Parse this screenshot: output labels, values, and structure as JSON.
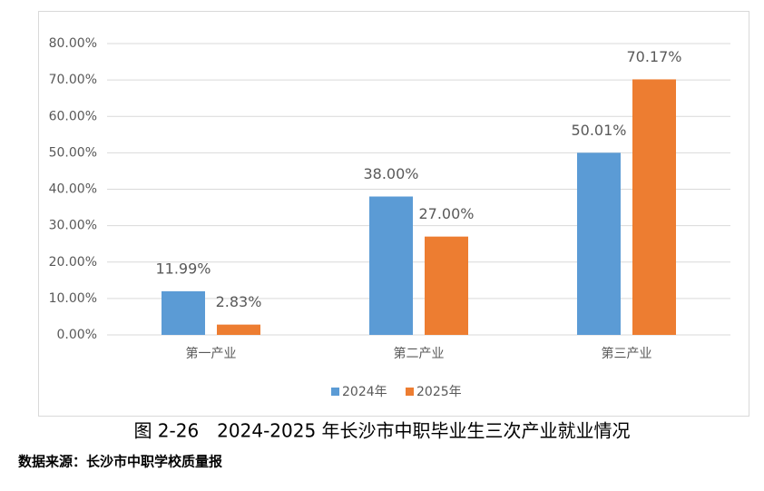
{
  "chart_data": {
    "type": "bar",
    "categories": [
      "第一产业",
      "第二产业",
      "第三产业"
    ],
    "series": [
      {
        "name": "2024年",
        "color": "#5b9bd5",
        "values": [
          11.99,
          38.0,
          50.01
        ],
        "value_labels": [
          "11.99%",
          "38.00%",
          "50.01%"
        ]
      },
      {
        "name": "2025年",
        "color": "#ed7d31",
        "values": [
          2.83,
          27.0,
          70.17
        ],
        "value_labels": [
          "2.83%",
          "27.00%",
          "70.17%"
        ]
      }
    ],
    "ylim": [
      0,
      80
    ],
    "yticks": [
      {
        "value": 0,
        "label": "0.00%"
      },
      {
        "value": 10,
        "label": "10.00%"
      },
      {
        "value": 20,
        "label": "20.00%"
      },
      {
        "value": 30,
        "label": "30.00%"
      },
      {
        "value": 40,
        "label": "40.00%"
      },
      {
        "value": 50,
        "label": "50.00%"
      },
      {
        "value": 60,
        "label": "60.00%"
      },
      {
        "value": 70,
        "label": "70.00%"
      },
      {
        "value": 80,
        "label": "80.00%"
      }
    ],
    "grid": true,
    "legend": "bottom"
  },
  "caption": "图 2-26　2024-2025 年长沙市中职毕业生三次产业就业情况",
  "source": "数据来源：长沙市中职学校质量报"
}
